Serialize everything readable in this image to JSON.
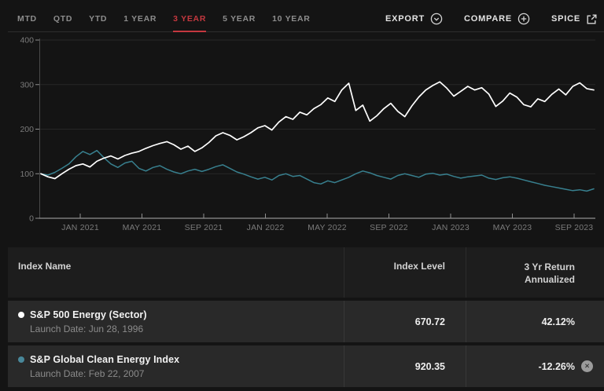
{
  "toolbar": {
    "tabs": [
      {
        "label": "MTD",
        "active": false
      },
      {
        "label": "QTD",
        "active": false
      },
      {
        "label": "YTD",
        "active": false
      },
      {
        "label": "1 YEAR",
        "active": false
      },
      {
        "label": "3 YEAR",
        "active": true
      },
      {
        "label": "5 YEAR",
        "active": false
      },
      {
        "label": "10 YEAR",
        "active": false
      }
    ],
    "export_label": "EXPORT",
    "compare_label": "COMPARE",
    "spice_label": "SPICE"
  },
  "chart_data": {
    "type": "line",
    "title": "",
    "xlabel": "",
    "ylabel": "",
    "ylim": [
      0,
      400
    ],
    "y_ticks": [
      0,
      100,
      200,
      300,
      400
    ],
    "x_ticks": [
      "JAN 2021",
      "MAY 2021",
      "SEP 2021",
      "JAN 2022",
      "MAY 2022",
      "SEP 2022",
      "JAN 2023",
      "MAY 2023",
      "SEP 2023"
    ],
    "grid": true,
    "legend_position": "none",
    "series": [
      {
        "name": "S&P 500 Energy (Sector)",
        "color": "#ffffff",
        "values": [
          100,
          93,
          89,
          100,
          110,
          118,
          122,
          115,
          128,
          135,
          140,
          133,
          141,
          146,
          150,
          157,
          163,
          168,
          172,
          165,
          155,
          162,
          150,
          158,
          170,
          185,
          192,
          186,
          176,
          183,
          192,
          203,
          208,
          198,
          216,
          228,
          222,
          238,
          232,
          246,
          255,
          270,
          262,
          288,
          303,
          242,
          254,
          218,
          230,
          246,
          258,
          240,
          228,
          252,
          272,
          288,
          298,
          306,
          292,
          274,
          285,
          296,
          288,
          293,
          279,
          251,
          263,
          281,
          272,
          255,
          250,
          268,
          262,
          278,
          290,
          277,
          296,
          304,
          291,
          288
        ]
      },
      {
        "name": "S&P Global Clean Energy Index",
        "color": "#38808f",
        "values": [
          100,
          97,
          103,
          112,
          122,
          138,
          150,
          143,
          152,
          136,
          122,
          114,
          124,
          128,
          112,
          106,
          114,
          118,
          110,
          104,
          100,
          106,
          110,
          105,
          110,
          116,
          120,
          112,
          104,
          99,
          93,
          88,
          92,
          86,
          96,
          100,
          94,
          96,
          88,
          80,
          77,
          84,
          80,
          86,
          92,
          100,
          106,
          102,
          96,
          92,
          88,
          96,
          100,
          96,
          92,
          99,
          101,
          97,
          99,
          94,
          90,
          93,
          95,
          97,
          90,
          87,
          91,
          93,
          90,
          86,
          82,
          78,
          74,
          71,
          68,
          65,
          62,
          64,
          61,
          66
        ]
      }
    ]
  },
  "table": {
    "headers": {
      "name": "Index Name",
      "level": "Index Level",
      "return_line1": "3 Yr Return",
      "return_line2": "Annualized"
    },
    "rows": [
      {
        "name": "S&P 500 Energy (Sector)",
        "launch": "Launch Date: Jun 28, 1996",
        "level": "670.72",
        "return": "42.12%",
        "bullet": "#ffffff"
      },
      {
        "name": "S&P Global Clean Energy Index",
        "launch": "Launch Date: Feb 22, 2007",
        "level": "920.35",
        "return": "-12.26%",
        "bullet": "#49889a"
      }
    ],
    "remove_glyph": "✕"
  },
  "colors": {
    "accent_red": "#c4383f",
    "grid_line": "#272727",
    "axis_line": "#8f8f8f",
    "axis_text": "#7a7a7a"
  }
}
